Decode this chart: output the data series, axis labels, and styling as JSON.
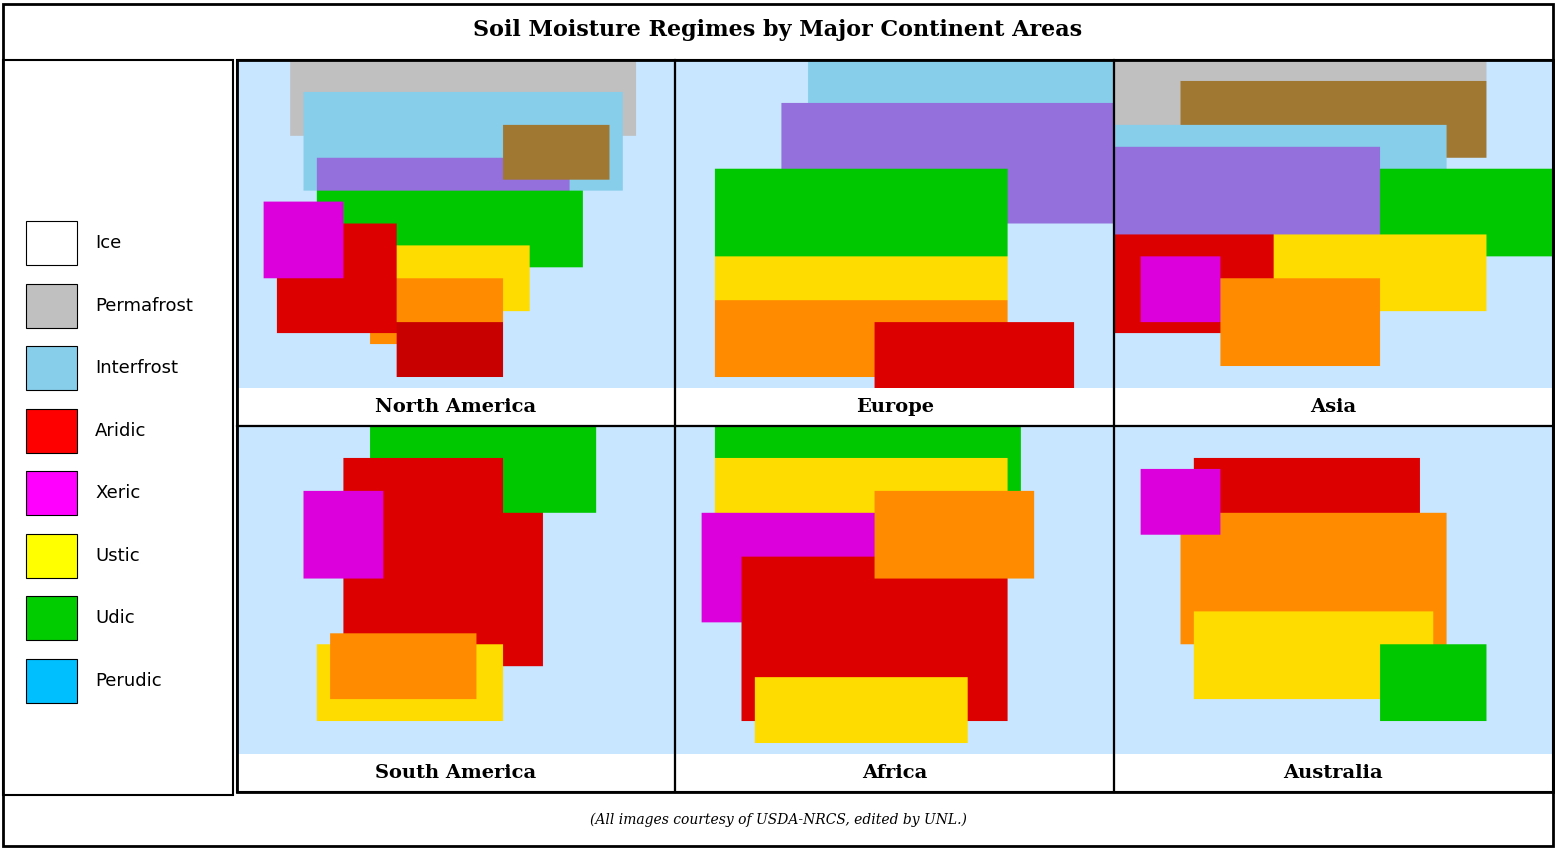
{
  "title": "Soil Moisture Regimes by Major Continent Areas",
  "subtitle": "(All images courtesy of USDA-NRCS, edited by UNL.)",
  "maps": [
    {
      "name": "North America",
      "col": 0,
      "row": 0
    },
    {
      "name": "Europe",
      "col": 1,
      "row": 0
    },
    {
      "name": "Asia",
      "col": 2,
      "row": 0
    },
    {
      "name": "South America",
      "col": 0,
      "row": 1
    },
    {
      "name": "Africa",
      "col": 1,
      "row": 1
    },
    {
      "name": "Australia",
      "col": 2,
      "row": 1
    }
  ],
  "legend_items": [
    {
      "label": "Ice",
      "color": "#FFFFFF",
      "edgecolor": "#000000"
    },
    {
      "label": "Permafrost",
      "color": "#C0C0C0",
      "edgecolor": "#000000"
    },
    {
      "label": "Interfrost",
      "color": "#87CEEB",
      "edgecolor": "#000000"
    },
    {
      "label": "Aridic",
      "color": "#FF0000",
      "edgecolor": "#000000"
    },
    {
      "label": "Xeric",
      "color": "#FF00FF",
      "edgecolor": "#000000"
    },
    {
      "label": "Ustic",
      "color": "#FFFF00",
      "edgecolor": "#000000"
    },
    {
      "label": "Udic",
      "color": "#00CC00",
      "edgecolor": "#000000"
    },
    {
      "label": "Perudic",
      "color": "#00BFFF",
      "edgecolor": "#000000"
    }
  ],
  "background_color": "#FFFFFF",
  "title_fontsize": 16,
  "label_fontsize": 14,
  "legend_fontsize": 13,
  "subtitle_fontsize": 10,
  "map_label_fontweight": "bold",
  "north_america_colors": {
    "ice": "#FFFFFF",
    "permafrost": "#C0C0C0",
    "interfrost": "#87CEEB",
    "pergelic": "#A0A0A0",
    "cryic": "#DEB887",
    "frigid": "#9370DB",
    "mesic": "#00CC00",
    "thermic": "#FFFF00",
    "hyperthermic": "#FFA500",
    "isomesic": "#00CC00",
    "isothermic": "#FF0000",
    "isohyperthermic": "#FF0000",
    "aridic": "#FF0000",
    "xeric": "#FF00FF"
  }
}
